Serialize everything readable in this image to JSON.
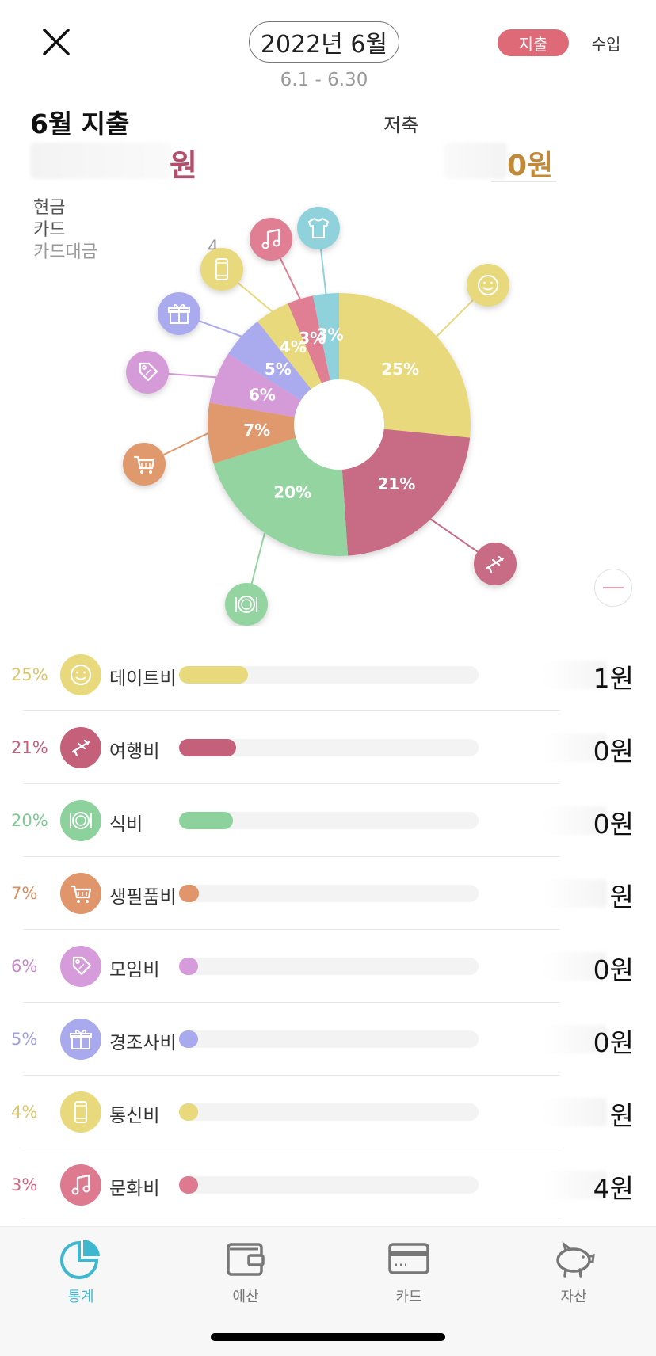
{
  "header": {
    "month": "2022년 6월",
    "range": "6.1 - 6.30",
    "segment_expense": "지출",
    "segment_income": "수입"
  },
  "summary": {
    "title": "6월 지출",
    "amount_unit": "원",
    "savings_label": "저축",
    "savings_unit": "0원",
    "methods": [
      "현금",
      "카드",
      "카드대금"
    ],
    "card_payment_tail": "4"
  },
  "chart_data": {
    "type": "pie",
    "donut": true,
    "categories": [
      "데이트비",
      "여행비",
      "식비",
      "생필품비",
      "모임비",
      "경조사비",
      "통신비",
      "문화비",
      "의류비"
    ],
    "values": [
      25,
      21,
      20,
      7,
      6,
      5,
      4,
      3,
      3
    ],
    "labels": [
      "25%",
      "21%",
      "20%",
      "7%",
      "6%",
      "5%",
      "4%",
      "3%",
      "3%"
    ],
    "colors": [
      "#e8d97c",
      "#c86c85",
      "#93d4a0",
      "#e0986d",
      "#d59bd8",
      "#aaaaee",
      "#e8d97c",
      "#e07f93",
      "#8fd2dc"
    ],
    "icons": [
      "smile-icon",
      "airplane-icon",
      "dish-icon",
      "cart-icon",
      "tag-icon",
      "gift-icon",
      "phone-icon",
      "music-icon",
      "shirt-icon"
    ]
  },
  "categories": [
    {
      "pct": "25%",
      "name": "데이트비",
      "amount": "1원",
      "fill": 0.23,
      "color": "#e8d97c",
      "pct_color": "#dcc56a",
      "icon": "smile-icon"
    },
    {
      "pct": "21%",
      "name": "여행비",
      "amount": "0원",
      "fill": 0.19,
      "color": "#c5607b",
      "pct_color": "#c5607b",
      "icon": "airplane-icon"
    },
    {
      "pct": "20%",
      "name": "식비",
      "amount": "0원",
      "fill": 0.18,
      "color": "#8dd29c",
      "pct_color": "#7ccb91",
      "icon": "dish-icon"
    },
    {
      "pct": "7%",
      "name": "생필품비",
      "amount": "원",
      "fill": 0.065,
      "color": "#e0956a",
      "pct_color": "#d98f5f",
      "icon": "cart-icon"
    },
    {
      "pct": "6%",
      "name": "모임비",
      "amount": "0원",
      "fill": 0.055,
      "color": "#d69bda",
      "pct_color": "#c986cd",
      "icon": "tag-icon"
    },
    {
      "pct": "5%",
      "name": "경조사비",
      "amount": "0원",
      "fill": 0.045,
      "color": "#a9a9ee",
      "pct_color": "#9e9ee6",
      "icon": "gift-icon"
    },
    {
      "pct": "4%",
      "name": "통신비",
      "amount": "원",
      "fill": 0.035,
      "color": "#e8d97c",
      "pct_color": "#dcc56a",
      "icon": "phone-icon"
    },
    {
      "pct": "3%",
      "name": "문화비",
      "amount": "4원",
      "fill": 0.03,
      "color": "#de7a8f",
      "pct_color": "#d4687f",
      "icon": "music-icon"
    }
  ],
  "tabs": [
    {
      "label": "통계",
      "icon": "chart-icon",
      "active": true
    },
    {
      "label": "예산",
      "icon": "wallet-icon",
      "active": false
    },
    {
      "label": "카드",
      "icon": "card-icon",
      "active": false
    },
    {
      "label": "자산",
      "icon": "piggybank-icon",
      "active": false
    }
  ],
  "colors": {
    "accent": "#3fb8cf",
    "expense": "#de6a78"
  }
}
